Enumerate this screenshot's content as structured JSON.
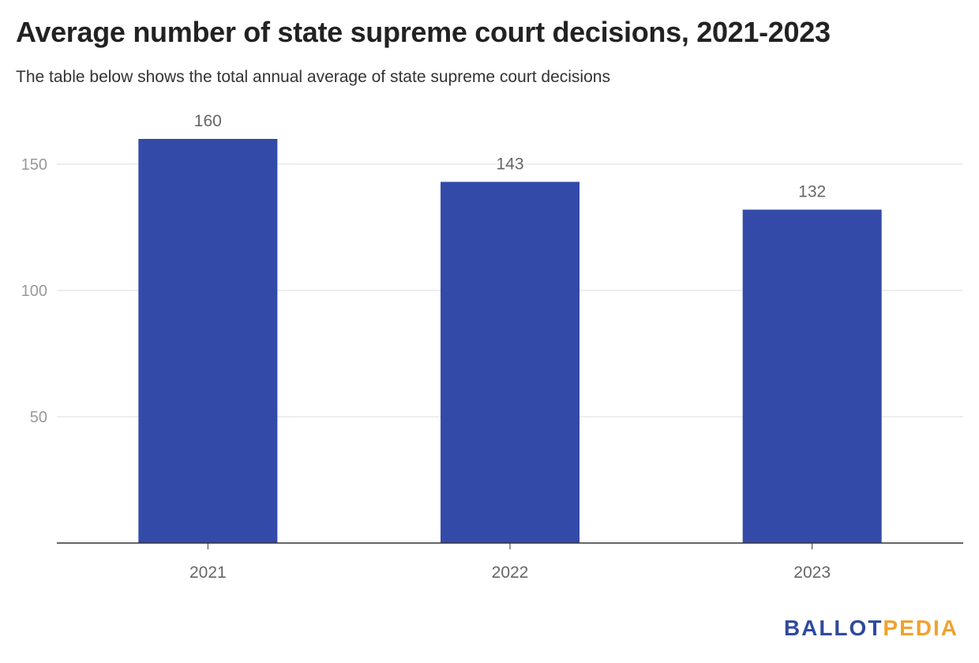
{
  "header": {
    "title": "Average number of state supreme court decisions, 2021-2023",
    "subtitle": "The table below shows the total annual average of state supreme court decisions"
  },
  "logo": {
    "part1": "BALLOT",
    "part2": "PEDIA",
    "color1": "#2f4a9d",
    "color2": "#f0a22e"
  },
  "colors": {
    "bar": "#344aa9",
    "grid": "#dddddd",
    "axis": "#333333",
    "tick_text": "#999999",
    "category_text": "#666666",
    "value_text": "#666666"
  },
  "chart_data": {
    "type": "bar",
    "categories": [
      "2021",
      "2022",
      "2023"
    ],
    "values": [
      160,
      143,
      132
    ],
    "data_labels": [
      "160",
      "143",
      "132"
    ],
    "title": "Average number of state supreme court decisions, 2021-2023",
    "subtitle": "The table below shows the total annual average of state supreme court decisions",
    "ylim": [
      0,
      160
    ],
    "yticks": [
      50,
      100,
      150
    ],
    "ytick_labels": [
      "50",
      "100",
      "150"
    ],
    "grid": true,
    "legend": "none"
  }
}
